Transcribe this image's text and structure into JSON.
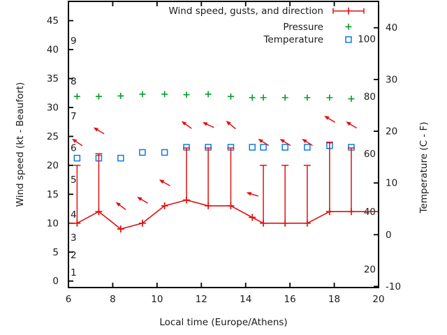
{
  "colors": {
    "wind": "#e01010",
    "pressure": "#00a028",
    "temperature": "#0d7ae0",
    "axis": "#000000",
    "text": "#1a1a1a",
    "background": "#ffffff"
  },
  "legend": {
    "items": [
      {
        "label": "Wind speed, gusts, and direction",
        "sample": "errorbar",
        "series": "wind"
      },
      {
        "label": "Pressure",
        "sample": "plus",
        "series": "pressure"
      },
      {
        "label": "Temperature",
        "sample": "square",
        "series": "temperature"
      }
    ]
  },
  "chart_data": {
    "type": "line",
    "title": "",
    "xlabel": "Local time (Europe/Athens)",
    "ylabel_left": "Wind speed (kt - Beaufort)",
    "ylabel_right": "Temperature (C - F)",
    "x_range": [
      6,
      20
    ],
    "x_ticks": [
      6,
      8,
      10,
      12,
      14,
      16,
      18,
      20
    ],
    "left_range_kt": [
      -1.12,
      48.33
    ],
    "left_ticks_kt": [
      0,
      5,
      10,
      15,
      20,
      25,
      30,
      35,
      40,
      45
    ],
    "right_range_c": [
      -10.21,
      45.09
    ],
    "right_ticks_c": [
      -10,
      0,
      10,
      20,
      30,
      40
    ],
    "beaufort_labels": [
      {
        "label": "1",
        "kt": 1.5
      },
      {
        "label": "2",
        "kt": 4.5
      },
      {
        "label": "3",
        "kt": 7.5
      },
      {
        "label": "4",
        "kt": 11.5
      },
      {
        "label": "5",
        "kt": 17.5
      },
      {
        "label": "6",
        "kt": 23
      },
      {
        "label": "7",
        "kt": 28.5
      },
      {
        "label": "8",
        "kt": 34.5
      },
      {
        "label": "9",
        "kt": 41.5
      }
    ],
    "fahrenheit_labels": [
      {
        "label": "20",
        "c": -6.7
      },
      {
        "label": "40",
        "c": 4.4
      },
      {
        "label": "60",
        "c": 15.6
      },
      {
        "label": "80",
        "c": 26.7
      },
      {
        "label": "100",
        "c": 37.8
      }
    ],
    "grid": false,
    "legend_position": "top-right-inside",
    "pressure_note": "pressure plotted without visible scale; values stored on left-axis kt coordinates",
    "points": [
      {
        "t": 6.39,
        "wind_kt": 10,
        "gust_kt": 20,
        "temp_c": 14.8,
        "pressure_pos_kt": 31.9,
        "arrow_kt": 24,
        "arrow_deg": 34
      },
      {
        "t": 7.37,
        "wind_kt": 12,
        "gust_kt": 22,
        "temp_c": 14.8,
        "pressure_pos_kt": 31.9,
        "arrow_kt": 26,
        "arrow_deg": 31
      },
      {
        "t": 8.36,
        "wind_kt": 9,
        "gust_kt": null,
        "temp_c": 14.8,
        "pressure_pos_kt": 32.0,
        "arrow_kt": 13,
        "arrow_deg": 37
      },
      {
        "t": 9.34,
        "wind_kt": 10,
        "gust_kt": null,
        "temp_c": 15.9,
        "pressure_pos_kt": 32.3,
        "arrow_kt": 14,
        "arrow_deg": 31
      },
      {
        "t": 10.34,
        "wind_kt": 13,
        "gust_kt": null,
        "temp_c": 15.9,
        "pressure_pos_kt": 32.3,
        "arrow_kt": 17,
        "arrow_deg": 30
      },
      {
        "t": 11.33,
        "wind_kt": 14,
        "gust_kt": 23,
        "temp_c": 16.9,
        "pressure_pos_kt": 32.2,
        "arrow_kt": 27,
        "arrow_deg": 36
      },
      {
        "t": 12.31,
        "wind_kt": 13,
        "gust_kt": 23,
        "temp_c": 16.9,
        "pressure_pos_kt": 32.3,
        "arrow_kt": 27,
        "arrow_deg": 25
      },
      {
        "t": 13.33,
        "wind_kt": 13,
        "gust_kt": 23,
        "temp_c": 16.9,
        "pressure_pos_kt": 31.9,
        "arrow_kt": 27,
        "arrow_deg": 40
      },
      {
        "t": 14.3,
        "wind_kt": 11,
        "gust_kt": null,
        "temp_c": 16.9,
        "pressure_pos_kt": 31.7,
        "arrow_kt": 15,
        "arrow_deg": 17
      },
      {
        "t": 14.8,
        "wind_kt": 10,
        "gust_kt": 20,
        "temp_c": 16.9,
        "pressure_pos_kt": 31.7,
        "arrow_kt": 24,
        "arrow_deg": 32
      },
      {
        "t": 15.78,
        "wind_kt": 10,
        "gust_kt": 20,
        "temp_c": 16.9,
        "pressure_pos_kt": 31.7,
        "arrow_kt": 24,
        "arrow_deg": 32
      },
      {
        "t": 16.78,
        "wind_kt": 10,
        "gust_kt": 20,
        "temp_c": 16.9,
        "pressure_pos_kt": 31.7,
        "arrow_kt": 24,
        "arrow_deg": 32
      },
      {
        "t": 17.79,
        "wind_kt": 12,
        "gust_kt": 24,
        "temp_c": 17.2,
        "pressure_pos_kt": 31.7,
        "arrow_kt": 28,
        "arrow_deg": 31
      },
      {
        "t": 18.77,
        "wind_kt": 12,
        "gust_kt": 23,
        "temp_c": 16.9,
        "pressure_pos_kt": 31.5,
        "arrow_kt": 27,
        "arrow_deg": 31
      }
    ],
    "wind_line_edges": {
      "left": {
        "t": 6.0,
        "wind_kt": 10
      },
      "right": {
        "t": 20.0,
        "wind_kt": 12
      }
    }
  }
}
